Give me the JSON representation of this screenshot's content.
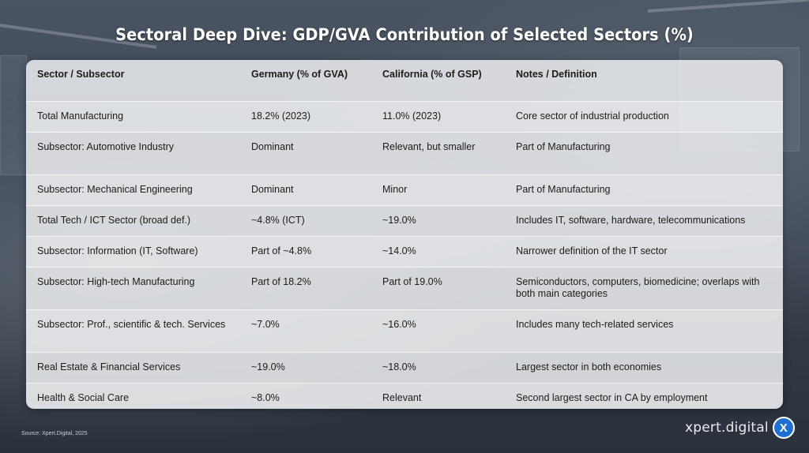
{
  "title": "Sectoral Deep Dive: GDP/GVA Contribution of Selected Sectors (%)",
  "table": {
    "headers": [
      "Sector / Subsector",
      "Germany (% of GVA)",
      "California (% of GSP)",
      "Notes / Definition"
    ],
    "rows": [
      [
        "Total Manufacturing",
        "18.2% (2023)",
        "11.0% (2023)",
        "Core sector of industrial production"
      ],
      [
        "Subsector: Automotive Industry",
        "Dominant",
        "Relevant, but smaller",
        "Part of Manufacturing"
      ],
      [
        "Subsector: Mechanical Engineering",
        "Dominant",
        "Minor",
        "Part of Manufacturing"
      ],
      [
        "Total Tech / ICT Sector (broad def.)",
        "~4.8% (ICT)",
        "~19.0%",
        "Includes IT, software, hardware, telecommunications"
      ],
      [
        "Subsector: Information (IT, Software)",
        "Part of ~4.8%",
        "~14.0%",
        "Narrower definition of the IT sector"
      ],
      [
        "Subsector: High-tech Manufacturing",
        "Part of 18.2%",
        "Part of 19.0%",
        "Semiconductors, computers, biomedicine; overlaps with both main categories"
      ],
      [
        "Subsector: Prof., scientific & tech. Services",
        "~7.0%",
        "~16.0%",
        "Includes many tech-related services"
      ],
      [
        "Real Estate & Financial Services",
        "~19.0%",
        "~18.0%",
        "Largest sector in both economies"
      ],
      [
        "Health & Social Care",
        "~8.0%",
        "Relevant",
        "Second largest sector in CA by employment"
      ]
    ]
  },
  "source": "Source: Xpert.Digital, 2025",
  "logo": {
    "text": "xpert.digital",
    "badge": "X"
  }
}
